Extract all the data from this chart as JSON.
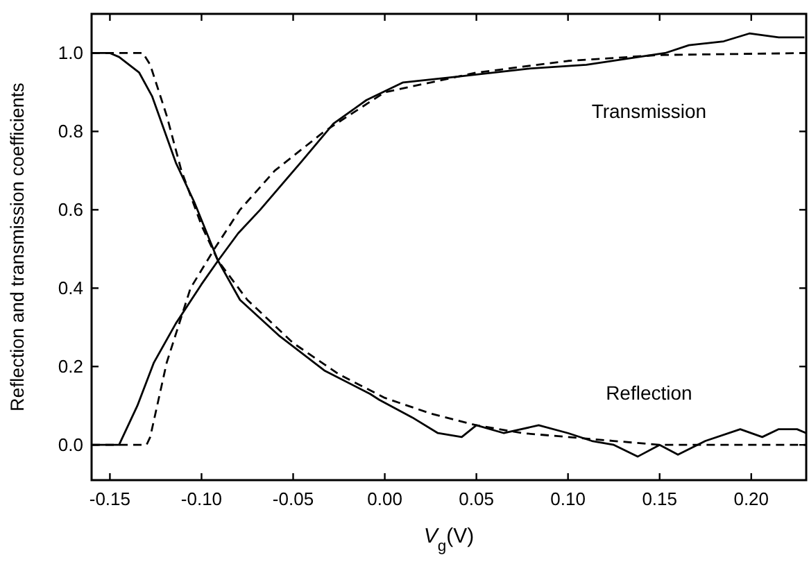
{
  "chart_data": {
    "type": "line",
    "xlabel": "V$_{g}$(V)",
    "ylabel": "Reflection and transmission coefficients",
    "xlim": [
      -0.16,
      0.23
    ],
    "ylim": [
      -0.09,
      1.1
    ],
    "xticks": [
      {
        "value": -0.15,
        "label": "-0.15"
      },
      {
        "value": -0.1,
        "label": "-0.10"
      },
      {
        "value": -0.05,
        "label": "-0.05"
      },
      {
        "value": 0,
        "label": "0.00"
      },
      {
        "value": 0.05,
        "label": "0.05"
      },
      {
        "value": 0.1,
        "label": "0.10"
      },
      {
        "value": 0.15,
        "label": "0.15"
      },
      {
        "value": 0.2,
        "label": "0.20"
      }
    ],
    "yticks": [
      {
        "value": 0,
        "label": "0.0"
      },
      {
        "value": 0.2,
        "label": "0.2"
      },
      {
        "value": 0.4,
        "label": "0.4"
      },
      {
        "value": 0.6,
        "label": "0.6"
      },
      {
        "value": 0.8,
        "label": "0.8"
      },
      {
        "value": 1,
        "label": "1.0"
      }
    ],
    "series": [
      {
        "color": "#000000",
        "line_style": "solid",
        "x": [
          -0.16,
          -0.15,
          -0.145,
          -0.134,
          -0.127,
          -0.114,
          -0.104,
          -0.091,
          -0.079,
          -0.058,
          -0.033,
          -0.008,
          -0.003,
          0.015,
          0.029,
          0.042,
          0.05,
          0.065,
          0.084,
          0.1,
          0.113,
          0.125,
          0.138,
          0.15,
          0.16,
          0.175,
          0.194,
          0.206,
          0.215,
          0.225,
          0.23
        ],
        "values": [
          1.0,
          1.0,
          0.99,
          0.95,
          0.89,
          0.72,
          0.62,
          0.47,
          0.37,
          0.28,
          0.19,
          0.13,
          0.115,
          0.07,
          0.03,
          0.02,
          0.05,
          0.03,
          0.05,
          0.03,
          0.01,
          0.0,
          -0.03,
          0.0,
          -0.025,
          0.01,
          0.04,
          0.02,
          0.04,
          0.04,
          0.03
        ]
      },
      {
        "color": "#000000",
        "line_style": "dashed",
        "x": [
          -0.16,
          -0.132,
          -0.128,
          -0.119,
          -0.111,
          -0.1,
          -0.091,
          -0.075,
          -0.05,
          -0.025,
          0.0,
          0.025,
          0.05,
          0.075,
          0.1,
          0.125,
          0.15,
          0.19,
          0.23
        ],
        "values": [
          1.0,
          1.0,
          0.97,
          0.84,
          0.7,
          0.56,
          0.47,
          0.37,
          0.26,
          0.18,
          0.12,
          0.08,
          0.05,
          0.03,
          0.02,
          0.01,
          0.0,
          0.0,
          0.0
        ]
      },
      {
        "color": "#000000",
        "line_style": "solid",
        "x": [
          -0.16,
          -0.145,
          -0.135,
          -0.126,
          -0.114,
          -0.1,
          -0.091,
          -0.08,
          -0.068,
          -0.046,
          -0.028,
          -0.01,
          0.01,
          0.04,
          0.078,
          0.11,
          0.153,
          0.166,
          0.185,
          0.199,
          0.215,
          0.229
        ],
        "values": [
          0.0,
          0.0,
          0.1,
          0.21,
          0.31,
          0.41,
          0.47,
          0.54,
          0.6,
          0.72,
          0.82,
          0.88,
          0.925,
          0.94,
          0.96,
          0.97,
          1.0,
          1.02,
          1.03,
          1.05,
          1.04,
          1.04
        ]
      },
      {
        "color": "#000000",
        "line_style": "dashed",
        "x": [
          -0.16,
          -0.13,
          -0.128,
          -0.119,
          -0.106,
          -0.093,
          -0.079,
          -0.06,
          -0.033,
          0.0,
          0.05,
          0.1,
          0.15,
          0.23
        ],
        "values": [
          0.0,
          0.0,
          0.02,
          0.21,
          0.4,
          0.5,
          0.6,
          0.7,
          0.8,
          0.9,
          0.95,
          0.98,
          0.995,
          1.0
        ]
      }
    ],
    "annotations": [
      "Transmission",
      "Reflection"
    ]
  }
}
